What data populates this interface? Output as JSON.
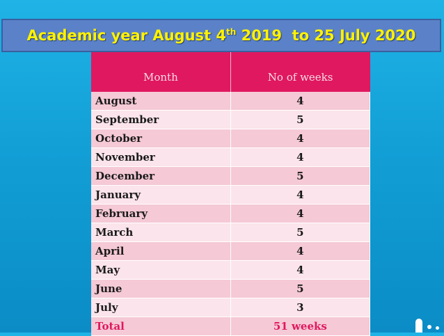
{
  "title": {
    "before_sup": "Academic year August 4",
    "sup": "th",
    "after_sup": " 2019  to 25 July 2020"
  },
  "table": {
    "headers": [
      "Month",
      "No of weeks"
    ],
    "rows": [
      {
        "month": "August",
        "weeks": "4"
      },
      {
        "month": "September",
        "weeks": "5"
      },
      {
        "month": "October",
        "weeks": "4"
      },
      {
        "month": "November",
        "weeks": "4"
      },
      {
        "month": "December",
        "weeks": "5"
      },
      {
        "month": "January",
        "weeks": "4"
      },
      {
        "month": "February",
        "weeks": "4"
      },
      {
        "month": "March",
        "weeks": "5"
      },
      {
        "month": "April",
        "weeks": "4"
      },
      {
        "month": "May",
        "weeks": "4"
      },
      {
        "month": "June",
        "weeks": "5"
      },
      {
        "month": "July",
        "weeks": "3"
      }
    ],
    "total": {
      "label": "Total",
      "value": "51 weeks"
    }
  },
  "colors": {
    "header_bg": "#e0185f",
    "row_dark": "#f5c9d6",
    "row_light": "#fbe4eb",
    "title_text": "#fff200",
    "banner_bg": "#5b82c9"
  }
}
